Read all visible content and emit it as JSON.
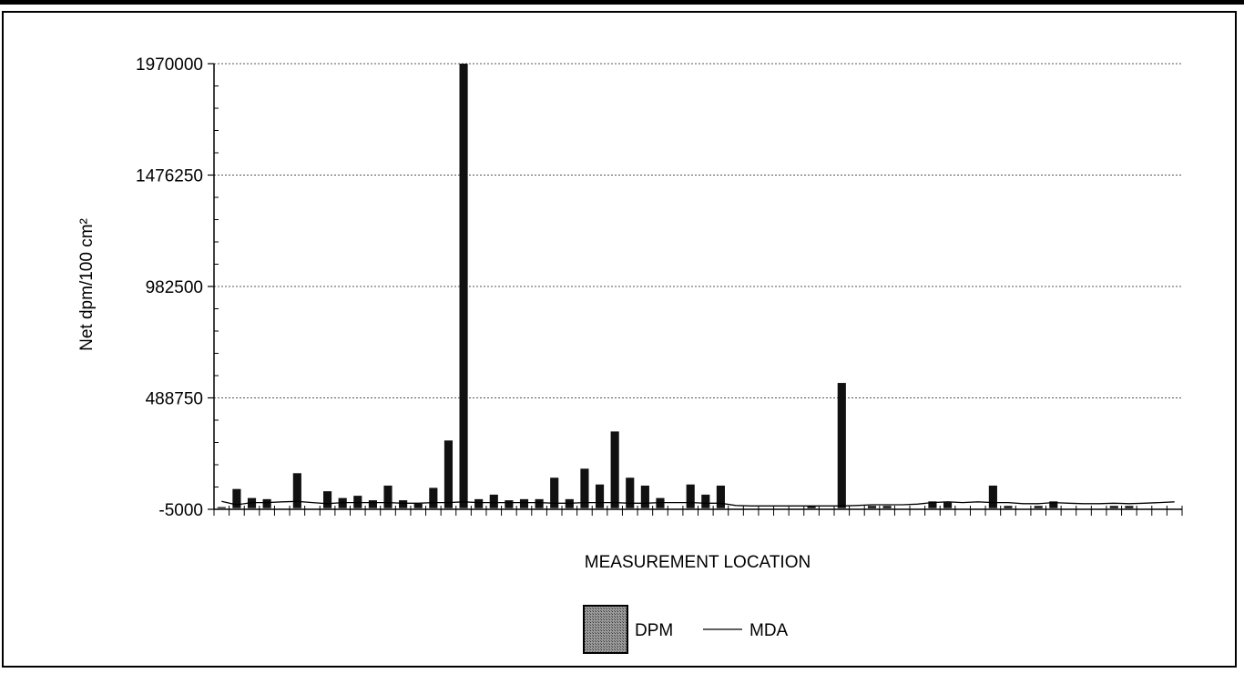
{
  "chart_data": {
    "type": "bar",
    "title": "",
    "xlabel": "MEASUREMENT LOCATION",
    "ylabel": "Net dpm/100 cm²",
    "ylim": [
      -5000,
      1970000
    ],
    "y_ticks": [
      "1970000",
      "1476250",
      "982500",
      "488750",
      "-5000"
    ],
    "grid": "horizontal-dotted",
    "legend": {
      "position": "bottom-center",
      "entries": [
        "DPM",
        "MDA"
      ]
    },
    "colors": {
      "bar": "#111111",
      "line": "#000000",
      "grid": "#555555"
    },
    "series": [
      {
        "name": "DPM",
        "kind": "bar",
        "values": [
          5000,
          85000,
          45000,
          40000,
          0,
          155000,
          0,
          75000,
          45000,
          55000,
          35000,
          100000,
          35000,
          20000,
          90000,
          300000,
          1970000,
          40000,
          60000,
          35000,
          40000,
          40000,
          135000,
          40000,
          175000,
          105000,
          340000,
          135000,
          100000,
          45000,
          0,
          105000,
          60000,
          100000,
          0,
          0,
          0,
          0,
          0,
          10000,
          0,
          555000,
          0,
          10000,
          10000,
          0,
          0,
          30000,
          25000,
          0,
          0,
          100000,
          10000,
          0,
          10000,
          30000,
          0,
          0,
          0,
          10000,
          10000,
          0,
          0,
          0
        ]
      },
      {
        "name": "MDA",
        "kind": "line",
        "values": [
          30000,
          15000,
          25000,
          25000,
          28000,
          30000,
          25000,
          20000,
          25000,
          25000,
          25000,
          25000,
          22000,
          22000,
          25000,
          25000,
          28000,
          25000,
          25000,
          25000,
          25000,
          25000,
          22000,
          22000,
          25000,
          25000,
          25000,
          22000,
          22000,
          25000,
          25000,
          25000,
          22000,
          22000,
          12000,
          10000,
          10000,
          10000,
          10000,
          10000,
          10000,
          10000,
          12000,
          15000,
          15000,
          15000,
          18000,
          25000,
          28000,
          25000,
          28000,
          25000,
          25000,
          20000,
          20000,
          25000,
          22000,
          20000,
          20000,
          22000,
          20000,
          22000,
          25000,
          28000
        ]
      }
    ]
  }
}
